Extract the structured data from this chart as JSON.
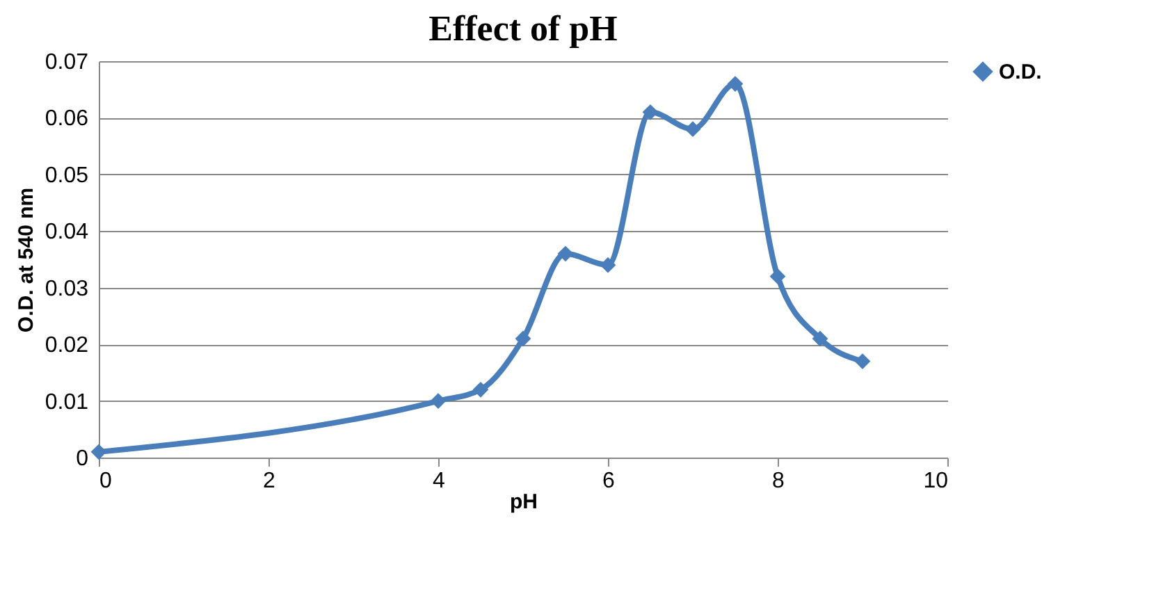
{
  "chart_data": {
    "type": "line",
    "title": "Effect of pH",
    "xlabel": "pH",
    "ylabel": "O.D. at 540 nm",
    "x": [
      0,
      4,
      4.5,
      5,
      5.5,
      6,
      6.5,
      7,
      7.5,
      8,
      8.5,
      9
    ],
    "series": [
      {
        "name": "O.D.",
        "color": "#4a7ebb",
        "values": [
          0.001,
          0.01,
          0.012,
          0.021,
          0.036,
          0.034,
          0.061,
          0.058,
          0.066,
          0.032,
          0.021,
          0.017
        ]
      }
    ],
    "xlim": [
      0,
      10
    ],
    "xticks": [
      0,
      2,
      4,
      6,
      8,
      10
    ],
    "ylim": [
      0,
      0.07
    ],
    "yticks": [
      0,
      0.01,
      0.02,
      0.03,
      0.04,
      0.05,
      0.06,
      0.07
    ],
    "grid": "y",
    "legend": "right",
    "marker": "diamond",
    "line_style": "solid"
  }
}
